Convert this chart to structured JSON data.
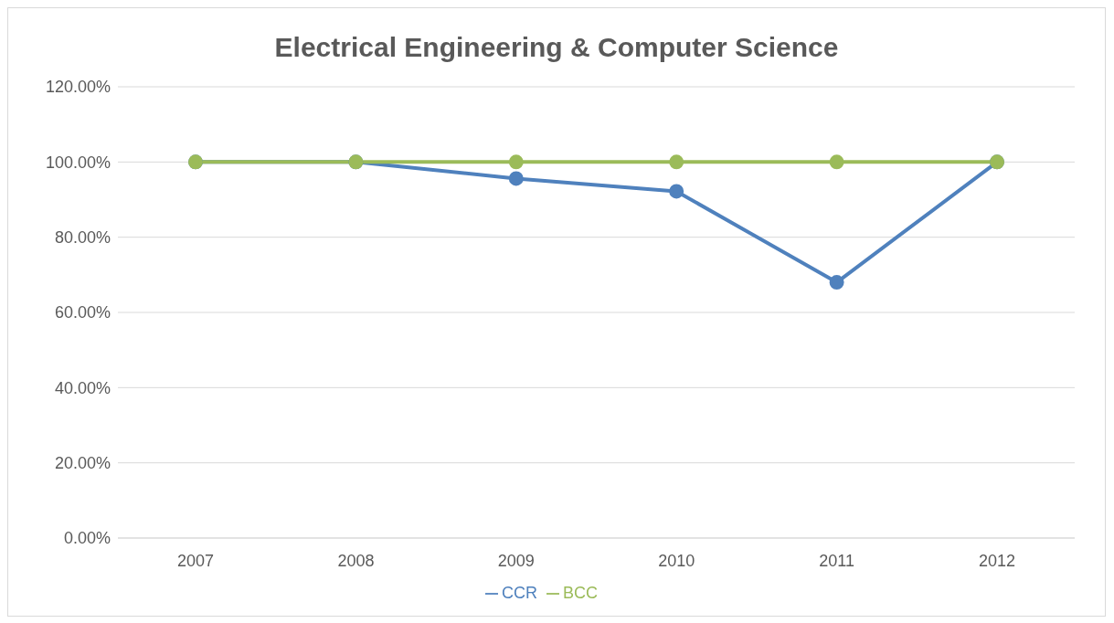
{
  "chart_data": {
    "type": "line",
    "title": "Electrical Engineering & Computer Science",
    "categories": [
      "2007",
      "2008",
      "2009",
      "2010",
      "2011",
      "2012"
    ],
    "series": [
      {
        "name": "CCR",
        "color": "#4f81bd",
        "values": [
          100,
          100,
          95.6,
          92.2,
          68,
          100
        ]
      },
      {
        "name": "BCC",
        "color": "#9bbb59",
        "values": [
          100,
          100,
          100,
          100,
          100,
          100
        ]
      }
    ],
    "ylim": [
      0,
      120
    ],
    "yticks": [
      {
        "value": 0,
        "label": "0.00%"
      },
      {
        "value": 20,
        "label": "20.00%"
      },
      {
        "value": 40,
        "label": "40.00%"
      },
      {
        "value": 60,
        "label": "60.00%"
      },
      {
        "value": 80,
        "label": "80.00%"
      },
      {
        "value": 100,
        "label": "100.00%"
      },
      {
        "value": 120,
        "label": "120.00%"
      }
    ],
    "grid": "y",
    "legend": "bottom",
    "marker": "circle"
  }
}
